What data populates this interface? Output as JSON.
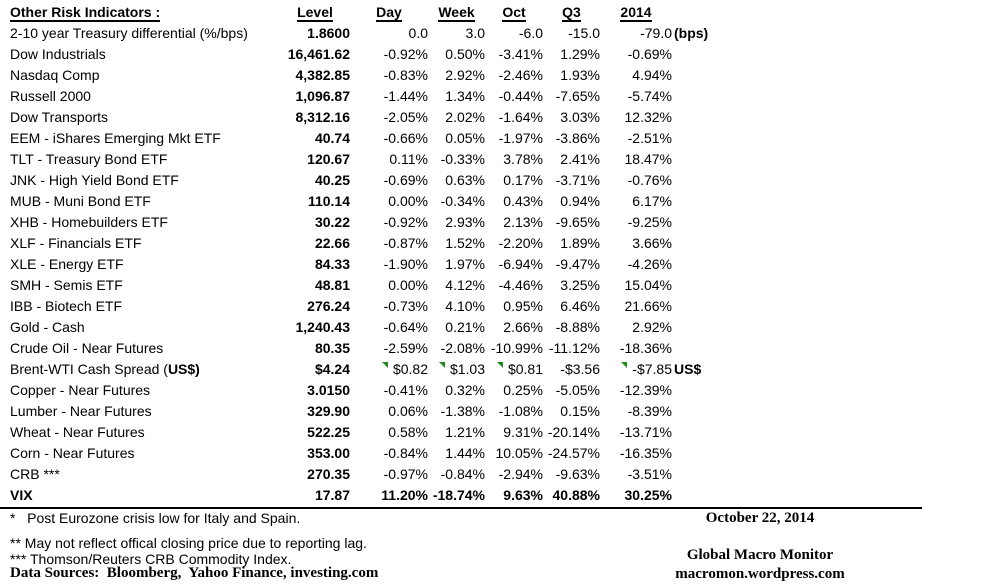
{
  "colors": {
    "flag_green": "#1f8b1f",
    "text": "#000000",
    "background": "#ffffff"
  },
  "table": {
    "headers": {
      "name": "Other Risk Indicators :",
      "level": "Level",
      "day": "Day",
      "week": "Week",
      "oct": "Oct",
      "q3": "Q3",
      "y2014": "2014"
    },
    "rows": [
      {
        "name": "2-10 year Treasury differential (%/bps)",
        "level": "1.8600",
        "day": "0.0",
        "week": "3.0",
        "oct": "-6.0",
        "q3": "-15.0",
        "y2014": "-79.0",
        "suffix": "(bps)"
      },
      {
        "name": "Dow Industrials",
        "level": "16,461.62",
        "day": "-0.92%",
        "week": "0.50%",
        "oct": "-3.41%",
        "q3": "1.29%",
        "y2014": "-0.69%"
      },
      {
        "name": "Nasdaq Comp",
        "level": "4,382.85",
        "day": "-0.83%",
        "week": "2.92%",
        "oct": "-2.46%",
        "q3": "1.93%",
        "y2014": "4.94%"
      },
      {
        "name": "Russell 2000",
        "level": "1,096.87",
        "day": "-1.44%",
        "week": "1.34%",
        "oct": "-0.44%",
        "q3": "-7.65%",
        "y2014": "-5.74%"
      },
      {
        "name": "Dow Transports",
        "level": "8,312.16",
        "day": "-2.05%",
        "week": "2.02%",
        "oct": "-1.64%",
        "q3": "3.03%",
        "y2014": "12.32%"
      },
      {
        "name": "EEM - iShares Emerging Mkt ETF",
        "level": "40.74",
        "day": "-0.66%",
        "week": "0.05%",
        "oct": "-1.97%",
        "q3": "-3.86%",
        "y2014": "-2.51%"
      },
      {
        "name": "TLT - Treasury Bond ETF",
        "level": "120.67",
        "day": "0.11%",
        "week": "-0.33%",
        "oct": "3.78%",
        "q3": "2.41%",
        "y2014": "18.47%"
      },
      {
        "name": "JNK - High Yield Bond ETF",
        "level": "40.25",
        "day": "-0.69%",
        "week": "0.63%",
        "oct": "0.17%",
        "q3": "-3.71%",
        "y2014": "-0.76%"
      },
      {
        "name": "MUB - Muni Bond ETF",
        "level": "110.14",
        "day": "0.00%",
        "week": "-0.34%",
        "oct": "0.43%",
        "q3": "0.94%",
        "y2014": "6.17%"
      },
      {
        "name": "XHB - Homebuilders ETF",
        "level": "30.22",
        "day": "-0.92%",
        "week": "2.93%",
        "oct": "2.13%",
        "q3": "-9.65%",
        "y2014": "-9.25%"
      },
      {
        "name": "XLF - Financials ETF",
        "level": "22.66",
        "day": "-0.87%",
        "week": "1.52%",
        "oct": "-2.20%",
        "q3": "1.89%",
        "y2014": "3.66%"
      },
      {
        "name": "XLE - Energy ETF",
        "level": "84.33",
        "day": "-1.90%",
        "week": "1.97%",
        "oct": "-6.94%",
        "q3": "-9.47%",
        "y2014": "-4.26%"
      },
      {
        "name": "SMH - Semis ETF",
        "level": "48.81",
        "day": "0.00%",
        "week": "4.12%",
        "oct": "-4.46%",
        "q3": "3.25%",
        "y2014": "15.04%"
      },
      {
        "name": "IBB - Biotech ETF",
        "level": "276.24",
        "day": "-0.73%",
        "week": "4.10%",
        "oct": "0.95%",
        "q3": "6.46%",
        "y2014": "21.66%"
      },
      {
        "name": "Gold - Cash",
        "level": "1,240.43",
        "day": "-0.64%",
        "week": "0.21%",
        "oct": "2.66%",
        "q3": "-8.88%",
        "y2014": "2.92%"
      },
      {
        "name": "Crude Oil - Near Futures",
        "level": "80.35",
        "day": "-2.59%",
        "week": "-2.08%",
        "oct": "-10.99%",
        "q3": "-11.12%",
        "y2014": "-18.36%"
      },
      {
        "name": "Brent-WTI Cash Spread (",
        "name_bold": "US$)",
        "level": "$4.24",
        "day": "$0.82",
        "week": "$1.03",
        "oct": "$0.81",
        "q3": "-$3.56",
        "y2014": "-$7.85",
        "suffix": "US$",
        "flags": [
          "day",
          "week",
          "oct",
          "y2014"
        ]
      },
      {
        "name": "Copper - Near Futures",
        "level": "3.0150",
        "day": "-0.41%",
        "week": "0.32%",
        "oct": "0.25%",
        "q3": "-5.05%",
        "y2014": "-12.39%"
      },
      {
        "name": "Lumber - Near Futures",
        "level": "329.90",
        "day": "0.06%",
        "week": "-1.38%",
        "oct": "-1.08%",
        "q3": "0.15%",
        "y2014": "-8.39%"
      },
      {
        "name": "Wheat - Near Futures",
        "level": "522.25",
        "day": "0.58%",
        "week": "1.21%",
        "oct": "9.31%",
        "q3": "-20.14%",
        "y2014": "-13.71%"
      },
      {
        "name": "Corn - Near Futures",
        "level": "353.00",
        "day": "-0.84%",
        "week": "1.44%",
        "oct": "10.05%",
        "q3": "-24.57%",
        "y2014": "-16.35%"
      },
      {
        "name": "CRB ***",
        "level": "270.35",
        "day": "-0.97%",
        "week": "-0.84%",
        "oct": "-2.94%",
        "q3": "-9.63%",
        "y2014": "-3.51%"
      },
      {
        "name": "VIX",
        "level": "17.87",
        "day": "11.20%",
        "week": "-18.74%",
        "oct": "9.63%",
        "q3": "40.88%",
        "y2014": "30.25%",
        "bold": true
      }
    ]
  },
  "footnotes": [
    "*   Post Eurozone crisis low for Italy and Spain.",
    "** May not reflect offical closing price due to reporting lag.",
    "*** Thomson/Reuters CRB Commodity Index."
  ],
  "data_sources": "Data Sources:  Bloomberg,  Yahoo Finance, investing.com",
  "footer_right": {
    "date": "October 22, 2014",
    "publication": "Global Macro Monitor",
    "website": "macromon.wordpress.com"
  }
}
